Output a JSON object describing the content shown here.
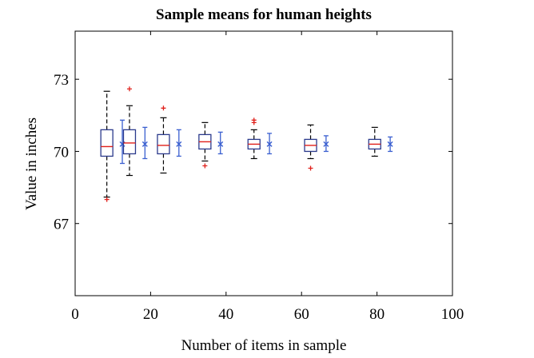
{
  "chart_data": {
    "type": "box",
    "title": "Sample means for human heights",
    "xlabel": "Number of items in sample",
    "ylabel": "Value in inches",
    "xlim": [
      0,
      100
    ],
    "ylim": [
      64,
      75
    ],
    "xticks": [
      0,
      20,
      40,
      60,
      80,
      100
    ],
    "yticks": [
      67,
      70,
      73
    ],
    "grid": false,
    "colors": {
      "box": "#2b3a8c",
      "median": "#e0201b",
      "outlier": "#e0201b",
      "whisker": "#000000",
      "interval": "#3a5fd0"
    },
    "groups": [
      {
        "n": 10,
        "whisker_low": 68.1,
        "q1": 69.8,
        "median": 70.2,
        "q3": 70.9,
        "whisker_high": 72.5,
        "outliers": [
          68.0
        ],
        "interval": {
          "low": 69.5,
          "high": 71.3,
          "mean": 70.3
        }
      },
      {
        "n": 16,
        "whisker_low": 69.0,
        "q1": 69.9,
        "median": 70.35,
        "q3": 70.9,
        "whisker_high": 71.9,
        "outliers": [
          72.6
        ],
        "interval": {
          "low": 69.7,
          "high": 71.0,
          "mean": 70.3
        }
      },
      {
        "n": 25,
        "whisker_low": 69.1,
        "q1": 69.9,
        "median": 70.25,
        "q3": 70.7,
        "whisker_high": 71.4,
        "outliers": [
          71.8
        ],
        "interval": {
          "low": 69.8,
          "high": 70.9,
          "mean": 70.3
        }
      },
      {
        "n": 36,
        "whisker_low": 69.6,
        "q1": 70.1,
        "median": 70.4,
        "q3": 70.7,
        "whisker_high": 71.2,
        "outliers": [
          69.4
        ],
        "interval": {
          "low": 69.9,
          "high": 70.8,
          "mean": 70.3
        }
      },
      {
        "n": 49,
        "whisker_low": 69.7,
        "q1": 70.1,
        "median": 70.3,
        "q3": 70.5,
        "whisker_high": 70.9,
        "outliers": [
          71.2,
          71.3
        ],
        "interval": {
          "low": 69.9,
          "high": 70.75,
          "mean": 70.3
        }
      },
      {
        "n": 64,
        "whisker_low": 69.7,
        "q1": 70.0,
        "median": 70.25,
        "q3": 70.5,
        "whisker_high": 71.1,
        "outliers": [
          69.3
        ],
        "interval": {
          "low": 70.0,
          "high": 70.65,
          "mean": 70.3
        }
      },
      {
        "n": 81,
        "whisker_low": 69.8,
        "q1": 70.1,
        "median": 70.3,
        "q3": 70.5,
        "whisker_high": 71.0,
        "outliers": [],
        "interval": {
          "low": 70.0,
          "high": 70.6,
          "mean": 70.3
        }
      }
    ]
  }
}
